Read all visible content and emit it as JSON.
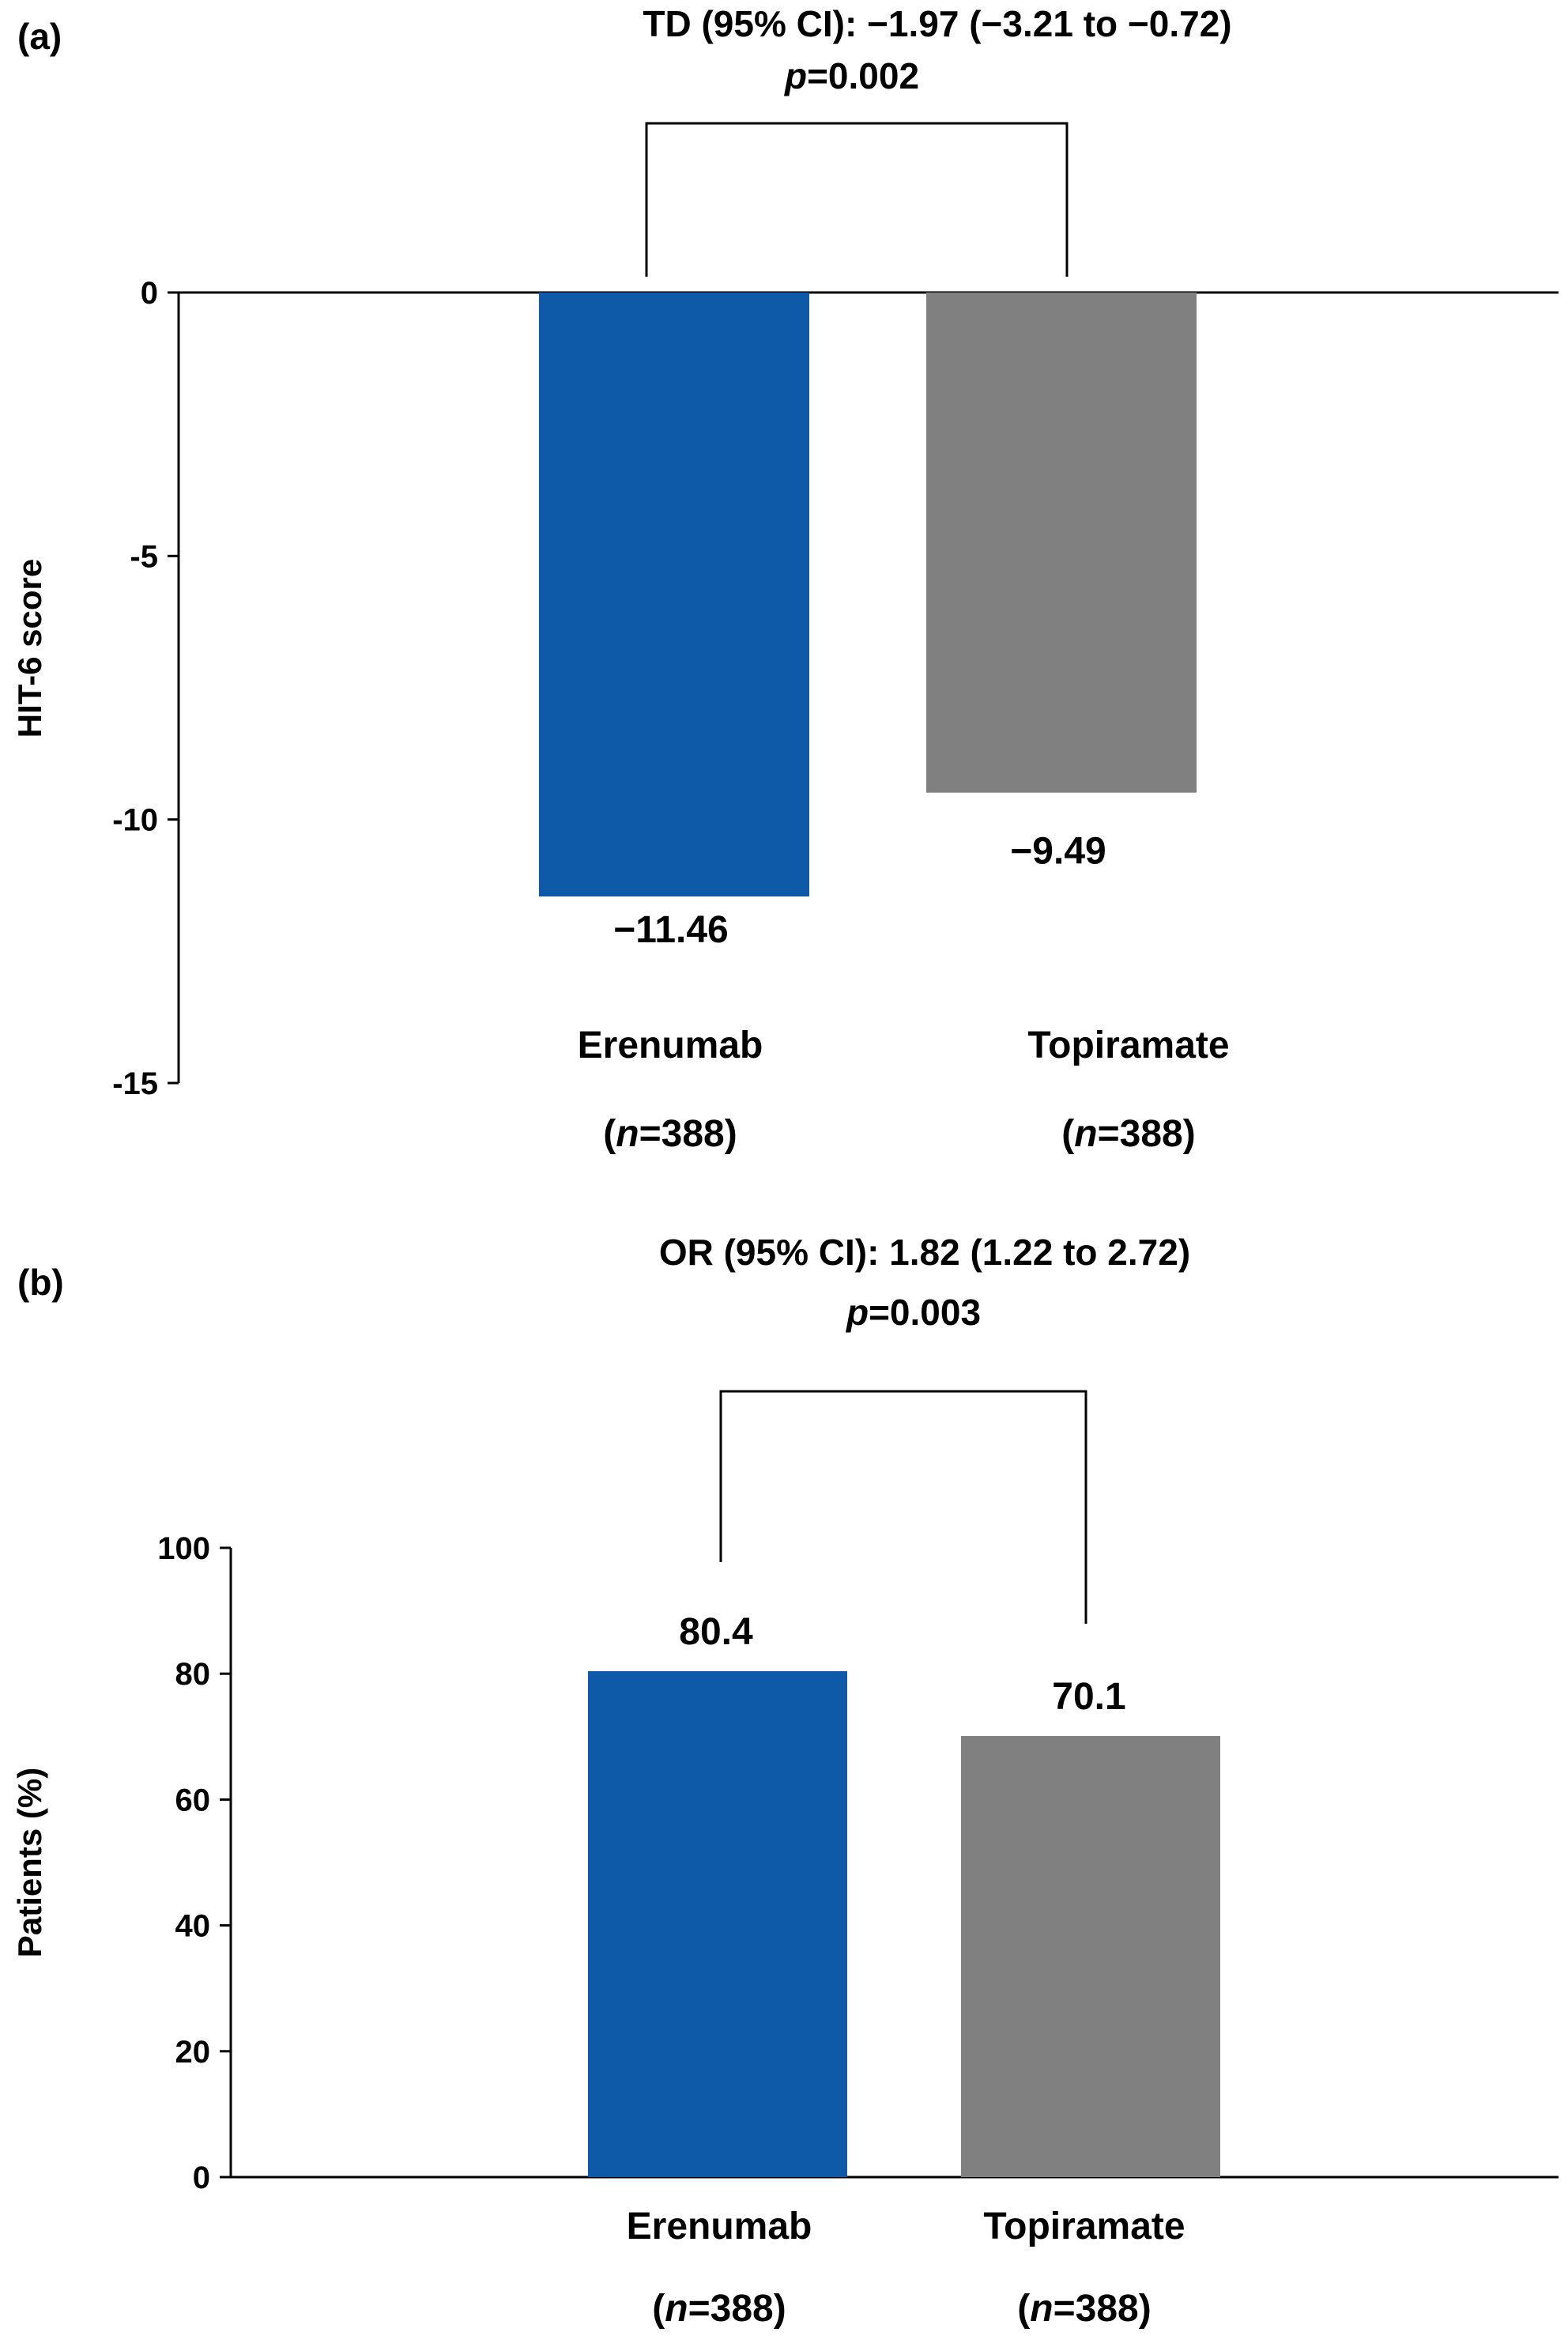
{
  "chart_data": [
    {
      "type": "bar",
      "panel_label": "(a)",
      "categories": [
        "Erenumab",
        "Topiramate"
      ],
      "category_n": [
        "388",
        "388"
      ],
      "values": [
        -11.46,
        -9.49
      ],
      "value_labels": [
        "−11.46",
        "−9.49"
      ],
      "colors": [
        "#0f5aa8",
        "#808080"
      ],
      "ylabel": "HIT-6 score",
      "ylim": [
        -15,
        0
      ],
      "yticks": [
        0,
        -5,
        -10,
        -15
      ],
      "ytick_labels": [
        "0",
        "-5",
        "-10",
        "-15"
      ],
      "annotation": {
        "line1": "TD (95% CI): −1.97 (−3.21 to −0.72)",
        "p_value": "=0.002"
      },
      "grid": false,
      "legend": "none"
    },
    {
      "type": "bar",
      "panel_label": "(b)",
      "categories": [
        "Erenumab",
        "Topiramate"
      ],
      "category_n": [
        "388",
        "388"
      ],
      "values": [
        80.4,
        70.1
      ],
      "value_labels": [
        "80.4",
        "70.1"
      ],
      "colors": [
        "#0f5aa8",
        "#808080"
      ],
      "ylabel": "Patients (%)",
      "ylim": [
        0,
        100
      ],
      "yticks": [
        0,
        20,
        40,
        60,
        80,
        100
      ],
      "ytick_labels": [
        "0",
        "20",
        "40",
        "60",
        "80",
        "100"
      ],
      "annotation": {
        "line1": "OR (95% CI): 1.82 (1.22 to 2.72)",
        "p_value": "=0.003"
      },
      "grid": false,
      "legend": "none"
    }
  ],
  "n_prefix": "(",
  "n_symbol": "n",
  "n_eq": "=",
  "n_suffix": ")",
  "p_symbol": "p"
}
